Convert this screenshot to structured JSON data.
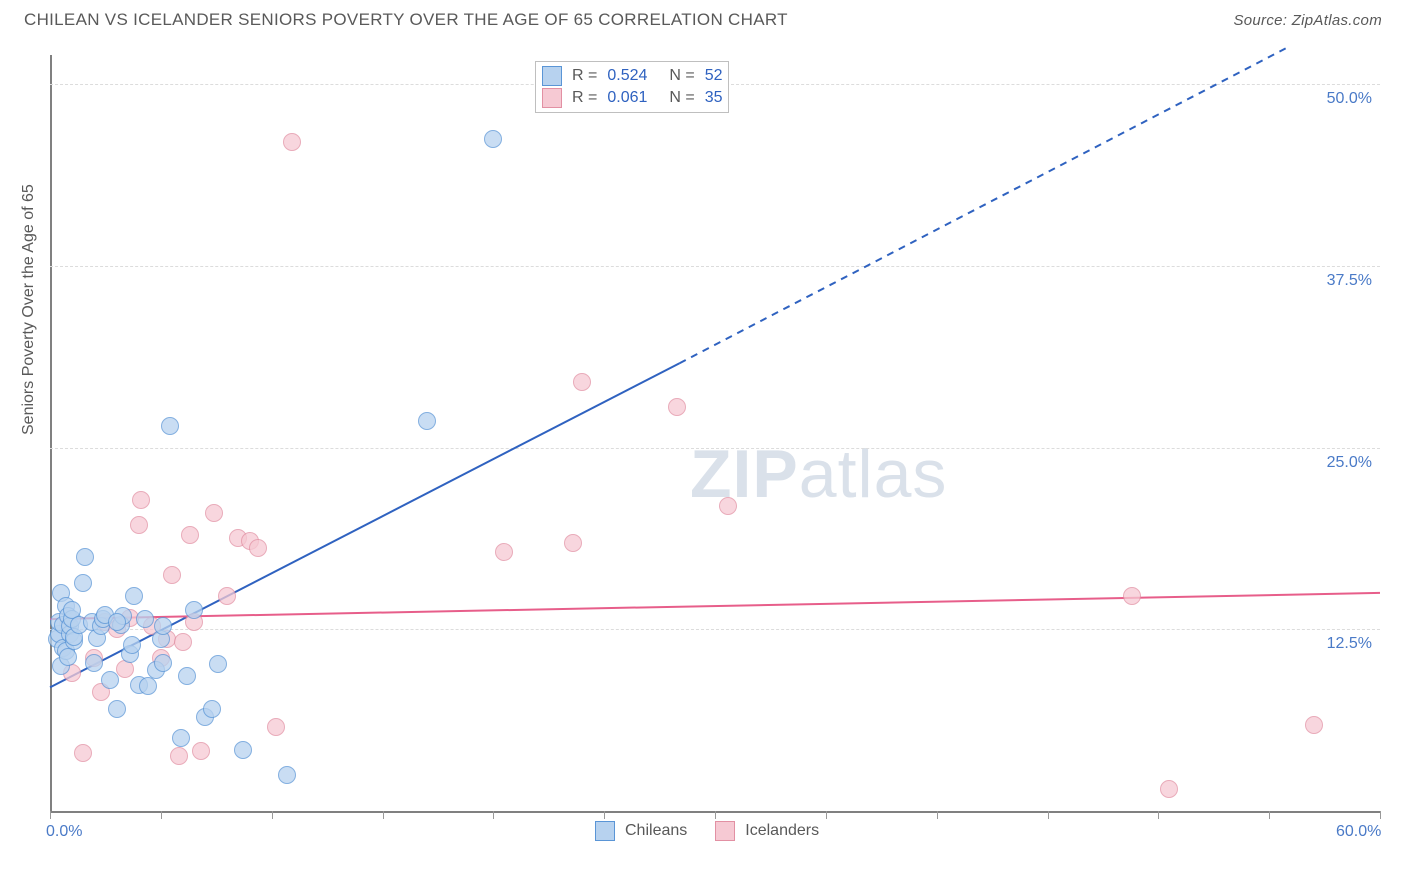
{
  "header": {
    "title": "CHILEAN VS ICELANDER SENIORS POVERTY OVER THE AGE OF 65 CORRELATION CHART",
    "source_label": "Source: ZipAtlas.com"
  },
  "chart": {
    "type": "scatter",
    "ylabel": "Seniors Poverty Over the Age of 65",
    "xlim": [
      0,
      60
    ],
    "ylim": [
      0,
      52
    ],
    "x_ticks": [
      0,
      5,
      10,
      15,
      20,
      25,
      30,
      35,
      40,
      45,
      50,
      55,
      60
    ],
    "x_tick_labels_visible": {
      "0": "0.0%",
      "60": "60.0%"
    },
    "y_grid": [
      12.5,
      25.0,
      37.5,
      50.0
    ],
    "y_tick_labels": [
      "12.5%",
      "25.0%",
      "37.5%",
      "50.0%"
    ],
    "background_color": "#ffffff",
    "grid_color": "#dcdcdc",
    "axis_color": "#808080",
    "tick_label_color": "#4a7ac7",
    "marker_radius": 9,
    "marker_border_width": 1.5,
    "marker_fill_opacity": 0.25,
    "series": {
      "chileans": {
        "label": "Chileans",
        "fill": "#b7d2ef",
        "stroke": "#5a95d6",
        "trend": {
          "x1": 0,
          "y1": 8.5,
          "x2": 28.4,
          "y2": 30.8,
          "dashed_to_x": 55.8,
          "dashed_to_y": 52.5,
          "color": "#2f62c0",
          "width": 2
        },
        "R": 0.524,
        "N": 52,
        "points": [
          [
            0.3,
            11.8
          ],
          [
            0.4,
            12.2
          ],
          [
            0.4,
            13.0
          ],
          [
            0.5,
            10.0
          ],
          [
            0.5,
            15.0
          ],
          [
            0.6,
            11.2
          ],
          [
            0.6,
            12.8
          ],
          [
            0.7,
            11.0
          ],
          [
            0.7,
            14.1
          ],
          [
            0.8,
            10.6
          ],
          [
            0.8,
            13.4
          ],
          [
            0.9,
            12.2
          ],
          [
            0.9,
            12.7
          ],
          [
            1.0,
            13.2
          ],
          [
            1.0,
            13.8
          ],
          [
            1.1,
            11.7
          ],
          [
            1.1,
            12.0
          ],
          [
            1.3,
            12.8
          ],
          [
            1.5,
            15.7
          ],
          [
            1.6,
            17.5
          ],
          [
            1.9,
            13.0
          ],
          [
            2.0,
            10.2
          ],
          [
            2.1,
            11.9
          ],
          [
            2.3,
            12.7
          ],
          [
            2.4,
            13.2
          ],
          [
            2.5,
            13.5
          ],
          [
            2.7,
            9.0
          ],
          [
            3.0,
            7.0
          ],
          [
            3.2,
            12.8
          ],
          [
            3.3,
            13.4
          ],
          [
            3.6,
            10.8
          ],
          [
            3.7,
            11.4
          ],
          [
            3.8,
            14.8
          ],
          [
            4.0,
            8.7
          ],
          [
            4.3,
            13.2
          ],
          [
            4.4,
            8.6
          ],
          [
            4.8,
            9.7
          ],
          [
            5.0,
            11.8
          ],
          [
            5.1,
            10.2
          ],
          [
            5.4,
            26.5
          ],
          [
            5.9,
            5.0
          ],
          [
            6.2,
            9.3
          ],
          [
            6.5,
            13.8
          ],
          [
            7.0,
            6.5
          ],
          [
            7.3,
            7.0
          ],
          [
            7.6,
            10.1
          ],
          [
            8.7,
            4.2
          ],
          [
            10.7,
            2.5
          ],
          [
            5.1,
            12.7
          ],
          [
            17.0,
            26.8
          ],
          [
            20.0,
            46.2
          ],
          [
            3.0,
            13.0
          ]
        ]
      },
      "icelanders": {
        "label": "Icelanders",
        "fill": "#f6c9d3",
        "stroke": "#e290a3",
        "trend": {
          "x1": 0,
          "y1": 13.2,
          "x2": 60,
          "y2": 15.0,
          "color": "#e75e8a",
          "width": 2
        },
        "R": 0.061,
        "N": 35,
        "points": [
          [
            0.8,
            12.8
          ],
          [
            1.0,
            9.5
          ],
          [
            1.5,
            4.0
          ],
          [
            2.0,
            10.5
          ],
          [
            2.3,
            8.2
          ],
          [
            2.5,
            13.0
          ],
          [
            3.0,
            12.5
          ],
          [
            3.4,
            9.8
          ],
          [
            3.6,
            13.3
          ],
          [
            4.0,
            19.7
          ],
          [
            4.1,
            21.4
          ],
          [
            4.6,
            12.7
          ],
          [
            5.0,
            10.5
          ],
          [
            5.3,
            11.8
          ],
          [
            5.5,
            16.2
          ],
          [
            5.8,
            3.8
          ],
          [
            6.0,
            11.6
          ],
          [
            6.3,
            19.0
          ],
          [
            6.5,
            13.0
          ],
          [
            6.8,
            4.1
          ],
          [
            7.4,
            20.5
          ],
          [
            8.0,
            14.8
          ],
          [
            8.5,
            18.8
          ],
          [
            9.0,
            18.6
          ],
          [
            9.4,
            18.1
          ],
          [
            10.2,
            5.8
          ],
          [
            10.9,
            46.0
          ],
          [
            20.5,
            17.8
          ],
          [
            23.6,
            18.4
          ],
          [
            24.0,
            29.5
          ],
          [
            28.3,
            27.8
          ],
          [
            30.6,
            21.0
          ],
          [
            48.8,
            14.8
          ],
          [
            50.5,
            1.5
          ],
          [
            57.0,
            5.9
          ]
        ]
      }
    },
    "legend_top": {
      "r_label": "R =",
      "n_label": "N =",
      "value_color": "#2f62c0",
      "text_color": "#595959"
    },
    "legend_bottom": {
      "items": [
        "chileans",
        "icelanders"
      ]
    },
    "watermark": {
      "text_zip": "ZIP",
      "text_atlas": "atlas",
      "color": "rgba(150,170,195,0.35)"
    }
  }
}
